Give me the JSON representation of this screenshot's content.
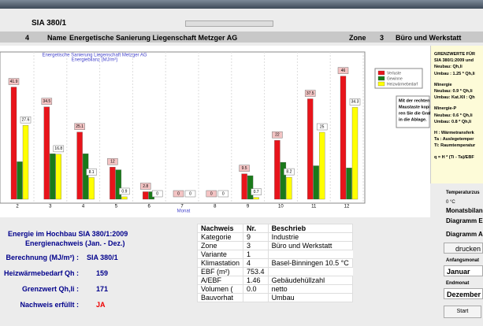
{
  "header": {
    "program": "SIA 380/1",
    "number": "4",
    "name_label": "Name",
    "name": "Energetische Sanierung Liegenschaft Metzger AG",
    "zone_label": "Zone",
    "zone_nr": "3",
    "zone_name": "Büro und Werkstatt"
  },
  "chart_data": {
    "type": "bar",
    "title": "Energetische Sanierung Liegenschaft Metzger AG",
    "subtitle": "Energiebilanz (MJ/m²)",
    "x_label": "Monat",
    "categories": [
      "2",
      "3",
      "4",
      "5",
      "6",
      "7",
      "8",
      "9",
      "10",
      "11",
      "12"
    ],
    "series": [
      {
        "name": "Verluste",
        "color": "#e8141b",
        "values": [
          41.9,
          34.5,
          25.1,
          12,
          2.8,
          0,
          0,
          9.5,
          22,
          37.5,
          46
        ]
      },
      {
        "name": "Gewinne",
        "color": "#1a7a1a",
        "values": [
          14,
          17,
          17,
          11,
          2.8,
          0,
          0,
          8.8,
          13.8,
          12.5,
          11.7
        ]
      },
      {
        "name": "Heizwärmebedarf",
        "color": "#ffff00",
        "values": [
          27.6,
          16.8,
          8.1,
          0.9,
          0,
          0,
          0,
          0.7,
          8.2,
          25,
          34.3
        ]
      }
    ],
    "labeled_series": [
      0,
      2
    ],
    "ylim": [
      0,
      55
    ],
    "note": [
      "Mit der rechten",
      "Maustaste kopie-",
      "ren Sie die Grafik",
      "in die Ablage."
    ]
  },
  "limits": {
    "lines": [
      "GRENZWERTE FÜR",
      "SIA 380/1:2009 und",
      "Neubau: Qh,li",
      "Umbau : 1.25 * Qh,li",
      "Minergie",
      "Neubau: 0.9 * Qh,li",
      "Umbau:  Kat.XII : Qh",
      "Minergie-P",
      "Neubau: 0.6 * Qh,li",
      "Umbau:  0.8 * Qh,li",
      "H : Wärmetransferk",
      "Ta : Auslegetemper",
      "Ti: Raumtemperatur",
      "q = H * (Ti - Ta)/EBF"
    ]
  },
  "summary": {
    "title": "Energie im Hochbau SIA 380/1:2009",
    "subtitle": "Energienachweis (Jan. - Dez.)",
    "rows": [
      [
        "Berechnung (MJ/m²) :",
        "SIA 380/1"
      ],
      [
        "Heizwärmebedarf Qh :",
        "159"
      ],
      [
        "Grenzwert Qh,li :",
        "171"
      ],
      [
        "Nachweis erfüllt :",
        "JA"
      ]
    ]
  },
  "table": {
    "header": [
      "Nachweis",
      "Nr.",
      "Beschrieb"
    ],
    "rows": [
      [
        "Kategorie",
        "9",
        "Industrie"
      ],
      [
        "Zone",
        "3",
        "Büro und Werkstatt"
      ],
      [
        "Variante",
        "1"
      ],
      [
        "Klimastation",
        "4",
        "Basel-Binningen   10.5 °C"
      ],
      [
        "EBF (m²)",
        "753.4"
      ],
      [
        "A/EBF",
        "1.46",
        "Gebäudehüllzahl"
      ],
      [
        "Volumen (",
        "0.0",
        "netto"
      ],
      [
        "Bauvorhat",
        "",
        "Umbau"
      ]
    ]
  },
  "controls": {
    "temp_label": "Temperaturzus",
    "temp_value": "0 °C",
    "balance_label": "Monatsbilanze",
    "radio1": "Diagramm E",
    "radio2": "Diagramm A",
    "print": "drucken",
    "start_label": "Anfangsmonat",
    "start_value": "Januar",
    "end_label": "Endmonat",
    "end_value": "Dezember",
    "start_button": "Start"
  }
}
